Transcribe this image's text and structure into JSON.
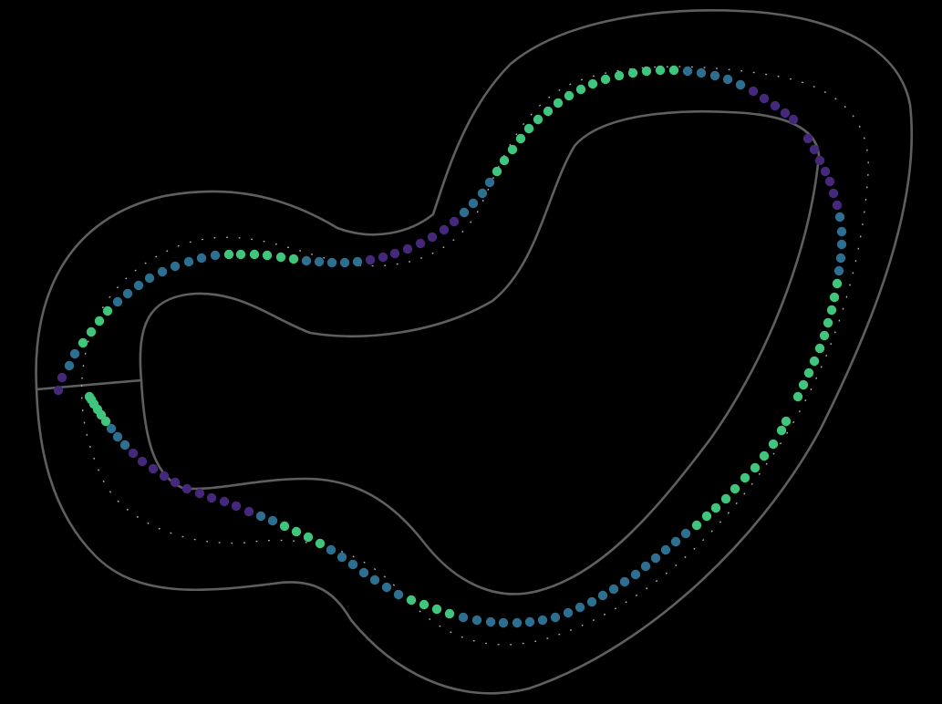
{
  "view": {
    "title": "",
    "background": "#000000"
  },
  "track": {
    "boundary_color": "#5f5f5f",
    "racing_line_color": "#b5b5b5",
    "has_start_finish_line": true
  },
  "trajectory": {
    "marker": "filled-circle",
    "palette": {
      "low": "#45287b",
      "mid": "#2c6f91",
      "high": "#3fc57c"
    }
  }
}
